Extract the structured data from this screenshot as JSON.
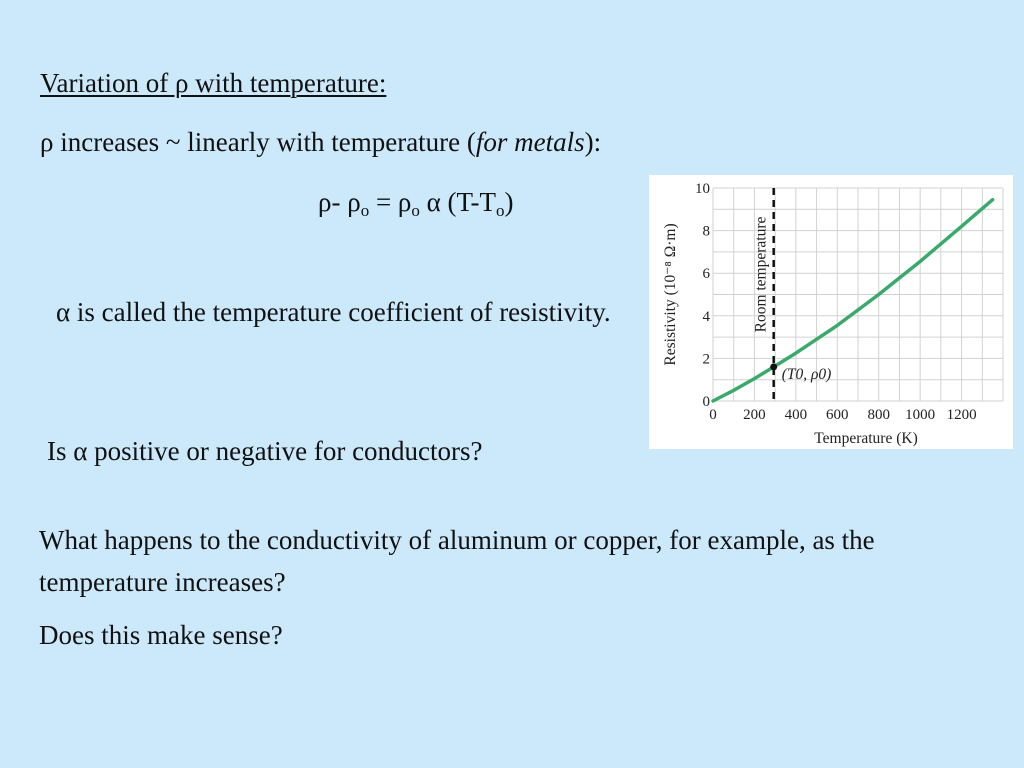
{
  "slide": {
    "heading": "Variation of ρ with temperature:",
    "line1_prefix": "ρ increases ~ linearly with temperature (",
    "line1_italic": "for metals",
    "line1_suffix": "):",
    "formula": {
      "p1": "ρ- ρ",
      "s1": "o",
      "p2": " = ρ",
      "s2": "o",
      "p3": " α (T-T",
      "s3": "o",
      "p4": ")"
    },
    "alpha_definition": "α is called the temperature coefficient of resistivity.",
    "question1": "Is α positive or negative for conductors?",
    "question2": "What happens to the conductivity of aluminum or copper, for example, as the temperature increases?",
    "question3": "Does this make sense?"
  },
  "chart_data": {
    "type": "line",
    "xlabel": "Temperature (K)",
    "ylabel": "Resistivity (10⁻⁸ Ω·m)",
    "xlim": [
      0,
      1400
    ],
    "ylim": [
      0,
      10
    ],
    "x_ticks": [
      "0",
      "200",
      "400",
      "600",
      "800",
      "1000",
      "1200"
    ],
    "y_ticks": [
      "0",
      "2",
      "4",
      "6",
      "8",
      "10"
    ],
    "grid": true,
    "series": [
      {
        "color": "#3aaa6a",
        "x": [
          0,
          100,
          200,
          293,
          400,
          600,
          800,
          1000,
          1200,
          1350
        ],
        "y": [
          0,
          0.5,
          1.05,
          1.6,
          2.25,
          3.55,
          5.0,
          6.55,
          8.2,
          9.45
        ]
      }
    ],
    "reference_line": {
      "x": 293,
      "label": "Room temperature",
      "style": "dashed"
    },
    "annotation": {
      "x": 293,
      "y": 1.6,
      "label": "(T0, ρ0)"
    }
  }
}
